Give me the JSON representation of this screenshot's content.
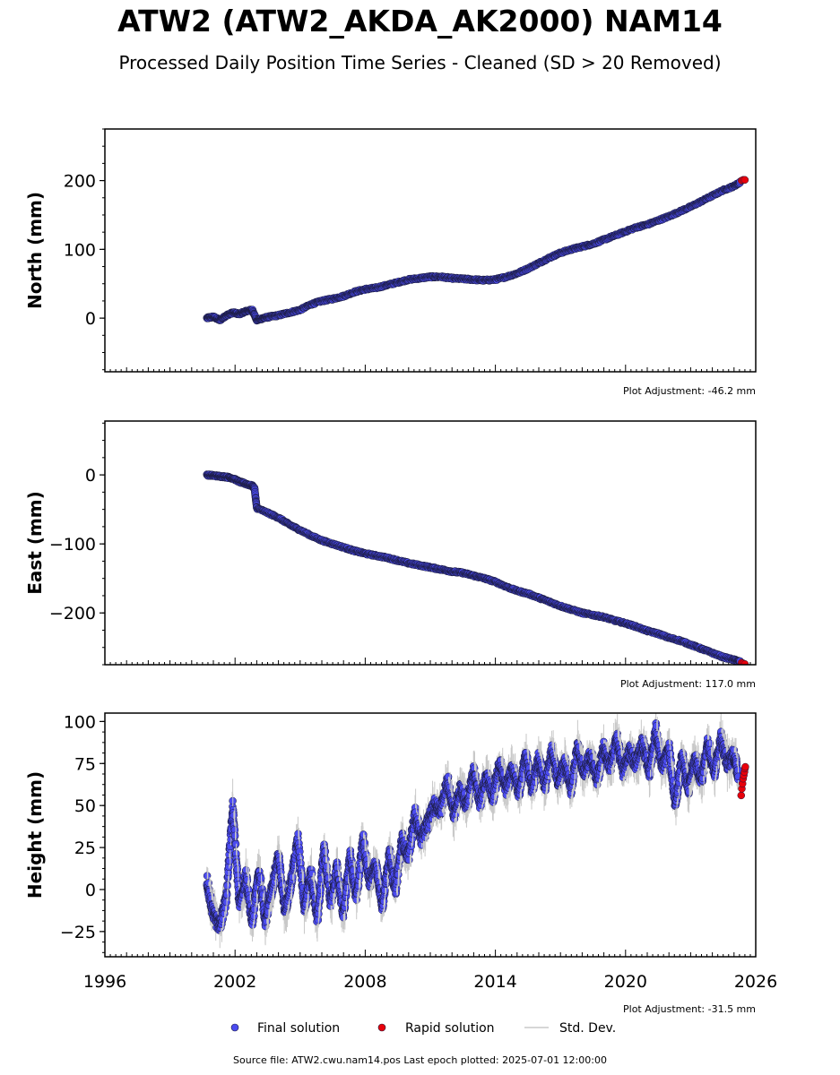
{
  "title": "ATW2 (ATW2_AKDA_AK2000) NAM14",
  "subtitle": "Processed Daily Position Time Series - Cleaned (SD > 20 Removed)",
  "source_text": "Source file: ATW2.cwu.nam14.pos  Last epoch plotted: 2025-07-01 12:00:00",
  "colors": {
    "final": "#4b4bf0",
    "rapid": "#e8000b",
    "edge": "#1a1a3a",
    "stddev": "#c8c8c8"
  },
  "chart_data": [
    {
      "type": "scatter",
      "ylabel": "North (mm)",
      "adjustment": "Plot Adjustment: -46.2 mm",
      "xlim": [
        1996,
        2026
      ],
      "ylim": [
        -78,
        275
      ],
      "yticks": [
        0,
        100,
        200
      ],
      "ytick_labels": [
        "0",
        "100",
        "200"
      ],
      "series": [
        {
          "name": "Final solution",
          "x": [
            2000.7,
            2001.0,
            2001.3,
            2001.6,
            2001.9,
            2002.2,
            2002.5,
            2002.8,
            2003.0,
            2003.3,
            2003.6,
            2004.0,
            2004.5,
            2005.0,
            2005.5,
            2006.0,
            2006.5,
            2007.0,
            2007.5,
            2008.0,
            2008.5,
            2009.0,
            2009.5,
            2010.0,
            2010.5,
            2011.0,
            2011.5,
            2012.0,
            2012.5,
            2013.0,
            2013.5,
            2014.0,
            2014.5,
            2015.0,
            2015.5,
            2016.0,
            2016.5,
            2017.0,
            2017.5,
            2018.0,
            2018.5,
            2019.0,
            2019.5,
            2020.0,
            2020.5,
            2021.0,
            2021.5,
            2022.0,
            2022.5,
            2023.0,
            2023.5,
            2024.0,
            2024.5,
            2025.0,
            2025.3
          ],
          "y": [
            0,
            2,
            -3,
            4,
            8,
            6,
            10,
            12,
            -3,
            0,
            2,
            4,
            8,
            12,
            20,
            25,
            28,
            32,
            38,
            42,
            44,
            48,
            52,
            56,
            58,
            60,
            60,
            58,
            57,
            56,
            55,
            56,
            60,
            65,
            72,
            80,
            88,
            95,
            100,
            104,
            108,
            114,
            120,
            126,
            132,
            136,
            142,
            148,
            155,
            162,
            170,
            178,
            186,
            192,
            198
          ]
        },
        {
          "name": "Rapid solution",
          "x": [
            2025.35,
            2025.42,
            2025.5
          ],
          "y": [
            200,
            201,
            201
          ]
        }
      ]
    },
    {
      "type": "scatter",
      "ylabel": "East (mm)",
      "adjustment": "Plot Adjustment: 117.0 mm",
      "xlim": [
        1996,
        2026
      ],
      "ylim": [
        -275,
        78
      ],
      "yticks": [
        0,
        -100,
        -200
      ],
      "ytick_labels": [
        "0",
        "−100",
        "−200"
      ],
      "series": [
        {
          "name": "Final solution",
          "x": [
            2000.7,
            2001.0,
            2001.3,
            2001.6,
            2001.9,
            2002.2,
            2002.5,
            2002.8,
            2002.9,
            2003.0,
            2003.5,
            2004.0,
            2004.5,
            2005.0,
            2005.5,
            2006.0,
            2006.5,
            2007.0,
            2007.5,
            2008.0,
            2008.5,
            2009.0,
            2009.5,
            2010.0,
            2010.5,
            2011.0,
            2011.5,
            2012.0,
            2012.5,
            2013.0,
            2013.5,
            2014.0,
            2014.5,
            2015.0,
            2015.5,
            2016.0,
            2016.5,
            2017.0,
            2017.5,
            2018.0,
            2018.5,
            2019.0,
            2019.5,
            2020.0,
            2020.5,
            2021.0,
            2021.5,
            2022.0,
            2022.5,
            2023.0,
            2023.5,
            2024.0,
            2024.5,
            2025.0,
            2025.3
          ],
          "y": [
            0,
            -1,
            -2,
            -3,
            -5,
            -10,
            -13,
            -16,
            -20,
            -48,
            -55,
            -62,
            -72,
            -80,
            -88,
            -95,
            -100,
            -105,
            -110,
            -114,
            -117,
            -120,
            -124,
            -128,
            -131,
            -134,
            -137,
            -140,
            -142,
            -146,
            -150,
            -155,
            -162,
            -168,
            -172,
            -178,
            -184,
            -190,
            -195,
            -200,
            -203,
            -206,
            -211,
            -215,
            -220,
            -226,
            -230,
            -236,
            -240,
            -246,
            -252,
            -258,
            -264,
            -268,
            -271
          ]
        },
        {
          "name": "Rapid solution",
          "x": [
            2025.35,
            2025.42,
            2025.5
          ],
          "y": [
            -272,
            -273,
            -274
          ]
        }
      ]
    },
    {
      "type": "scatter",
      "ylabel": "Height (mm)",
      "adjustment": "Plot Adjustment: -31.5 mm",
      "xlim": [
        1996,
        2026
      ],
      "ylim": [
        -40,
        105
      ],
      "yticks": [
        -25,
        0,
        25,
        50,
        75,
        100
      ],
      "ytick_labels": [
        "−25",
        "0",
        "25",
        "50",
        "75",
        "100"
      ],
      "xticks": [
        1996,
        2002,
        2008,
        2014,
        2020,
        2026
      ],
      "xtick_labels": [
        "1996",
        "2002",
        "2008",
        "2014",
        "2020",
        "2026"
      ],
      "series": [
        {
          "name": "Final solution",
          "x": [
            2000.7,
            2001.0,
            2001.3,
            2001.6,
            2001.9,
            2002.2,
            2002.5,
            2002.8,
            2003.1,
            2003.4,
            2003.7,
            2004.0,
            2004.3,
            2004.6,
            2004.9,
            2005.2,
            2005.5,
            2005.8,
            2006.1,
            2006.4,
            2006.7,
            2007.0,
            2007.3,
            2007.6,
            2007.9,
            2008.2,
            2008.5,
            2008.8,
            2009.1,
            2009.4,
            2009.7,
            2010.0,
            2010.3,
            2010.6,
            2010.9,
            2011.2,
            2011.5,
            2011.8,
            2012.1,
            2012.4,
            2012.7,
            2013.0,
            2013.3,
            2013.6,
            2013.9,
            2014.2,
            2014.5,
            2014.8,
            2015.1,
            2015.4,
            2015.7,
            2016.0,
            2016.3,
            2016.6,
            2016.9,
            2017.2,
            2017.5,
            2017.8,
            2018.1,
            2018.4,
            2018.7,
            2019.0,
            2019.3,
            2019.6,
            2019.9,
            2020.2,
            2020.5,
            2020.8,
            2021.1,
            2021.4,
            2021.7,
            2022.0,
            2022.3,
            2022.6,
            2022.9,
            2023.2,
            2023.5,
            2023.8,
            2024.1,
            2024.4,
            2024.7,
            2025.0,
            2025.2
          ],
          "y": [
            5,
            -15,
            -22,
            -5,
            50,
            -10,
            8,
            -20,
            12,
            -18,
            0,
            20,
            -12,
            5,
            30,
            -10,
            10,
            -18,
            25,
            -8,
            12,
            -15,
            20,
            -5,
            30,
            5,
            15,
            -10,
            22,
            0,
            30,
            20,
            45,
            30,
            40,
            50,
            48,
            65,
            45,
            60,
            50,
            70,
            52,
            68,
            55,
            75,
            60,
            72,
            58,
            80,
            60,
            78,
            62,
            82,
            65,
            75,
            60,
            85,
            70,
            80,
            65,
            85,
            72,
            90,
            70,
            82,
            75,
            88,
            70,
            95,
            72,
            85,
            50,
            80,
            60,
            78,
            65,
            88,
            70,
            90,
            75,
            80,
            68
          ]
        },
        {
          "name": "Rapid solution",
          "x": [
            2025.33,
            2025.36,
            2025.39,
            2025.42,
            2025.45,
            2025.48,
            2025.5,
            2025.52
          ],
          "y": [
            56,
            60,
            63,
            66,
            68,
            70,
            72,
            73
          ]
        }
      ]
    }
  ],
  "legend": {
    "final_label": "Final solution",
    "rapid_label": "Rapid solution",
    "std_label": "Std. Dev."
  }
}
